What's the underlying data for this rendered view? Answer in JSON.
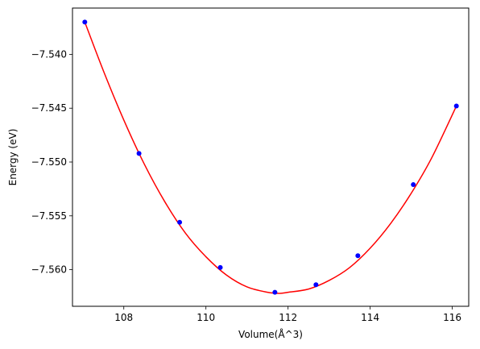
{
  "chart_data": {
    "type": "scatter",
    "xlabel": "Volume(Å^3)",
    "ylabel": "Energy (eV)",
    "xlim": [
      106.75,
      116.4
    ],
    "ylim": [
      -7.5634,
      -7.5357
    ],
    "xticks": [
      108,
      110,
      112,
      114,
      116
    ],
    "xtick_labels": [
      "108",
      "110",
      "112",
      "114",
      "116"
    ],
    "yticks": [
      -7.54,
      -7.545,
      -7.55,
      -7.555,
      -7.56
    ],
    "ytick_labels": [
      "−7.540",
      "−7.545",
      "−7.550",
      "−7.555",
      "−7.560"
    ],
    "grid": false,
    "series": [
      {
        "kind": "points",
        "color": "#0000ff",
        "x": [
          107.05,
          108.37,
          109.36,
          110.35,
          111.68,
          112.68,
          113.7,
          115.05,
          116.1
        ],
        "y": [
          -7.537,
          -7.5492,
          -7.5556,
          -7.5598,
          -7.5621,
          -7.5614,
          -7.5587,
          -7.5521,
          -7.5448
        ]
      },
      {
        "kind": "fit-curve",
        "color": "#ff0000",
        "x": [
          107.05,
          107.5,
          108.0,
          108.5,
          109.0,
          109.5,
          110.0,
          110.5,
          111.0,
          111.5,
          111.8,
          112.0,
          112.5,
          113.0,
          113.5,
          114.0,
          114.5,
          115.0,
          115.5,
          116.1
        ],
        "y": [
          -7.537,
          -7.5415,
          -7.5461,
          -7.5502,
          -7.5537,
          -7.5566,
          -7.5588,
          -7.5605,
          -7.5616,
          -7.5621,
          -7.5622,
          -7.5621,
          -7.5618,
          -7.561,
          -7.5598,
          -7.558,
          -7.5557,
          -7.5529,
          -7.5496,
          -7.5448
        ]
      }
    ]
  }
}
